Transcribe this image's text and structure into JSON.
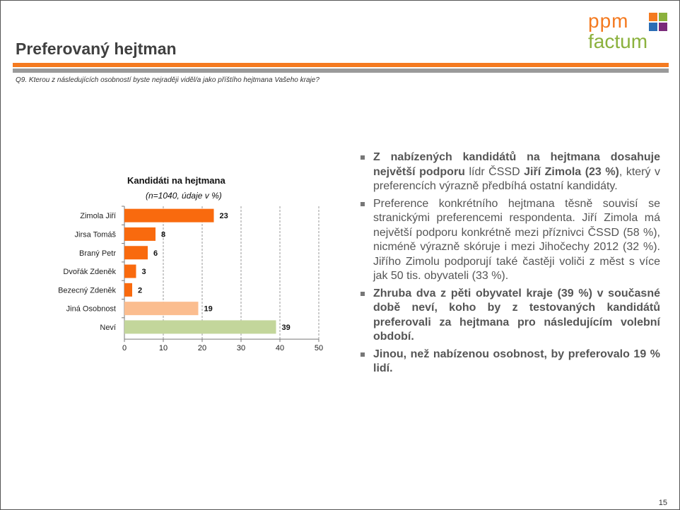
{
  "header": {
    "title": "Preferovaný hejtman",
    "question": "Q9.  Kterou z následujících osobností byste nejraději viděl/a jako příštího hejtmana Vašeho kraje?"
  },
  "logo": {
    "top_text": "ppm",
    "bottom_text": "factum",
    "square_colors": [
      "#f47a20",
      "#8bb13d",
      "#2a6db5",
      "#7a2a7a"
    ]
  },
  "colors": {
    "accent": "#f47a20",
    "bar_main": "#f96a0e",
    "bar_other": "#fbbd8f",
    "bar_unknown": "#c3d69b"
  },
  "chart_data": {
    "type": "bar",
    "orientation": "horizontal",
    "title": "Kandidáti na hejtmana",
    "subtitle": "(n=1040, údaje v %)",
    "categories": [
      "Zimola Jiří",
      "Jirsa Tomáš",
      "Braný Petr",
      "Dvořák Zdeněk",
      "Bezecný Zdeněk",
      "Jiná Osobnost",
      "Neví"
    ],
    "values": [
      23,
      8,
      6,
      3,
      2,
      19,
      39
    ],
    "xlim": [
      0,
      50
    ],
    "xticks": [
      "0",
      "10",
      "20",
      "30",
      "40",
      "50"
    ],
    "grid": "vertical dashed",
    "data_labels": true
  },
  "bullets": [
    [
      {
        "t": "Z nabízených kandidátů na hejtmana dosahuje největší podporu",
        "b": true
      },
      {
        "t": " lídr ČSSD ",
        "b": false
      },
      {
        "t": "Jiří Zimola (23 %)",
        "b": true
      },
      {
        "t": ", který v preferencích výrazně předbíhá ostatní kandidáty.",
        "b": false
      }
    ],
    [
      {
        "t": "Preference konkrétního hejtmana těsně souvisí se stranickými preferencemi respondenta. Jiří Zimola má největší podporu konkrétně mezi příznivci ČSSD (58 %), nicméně výrazně skóruje i mezi Jihočechy 2012 (32 %). Jiřího Zimolu podporují také častěji voliči z měst s více jak 50 tis. obyvateli (33 %).",
        "b": false
      }
    ],
    [
      {
        "t": "Zhruba dva z pěti obyvatel kraje (39 %) v současné době neví, koho by z testovaných kandidátů preferovali za hejtmana pro následujícím volební období.",
        "b": true
      }
    ],
    [
      {
        "t": "Jinou, než nabízenou osobnost, by preferovalo 19 % lidí.",
        "b": true
      }
    ]
  ],
  "page_number": "15"
}
